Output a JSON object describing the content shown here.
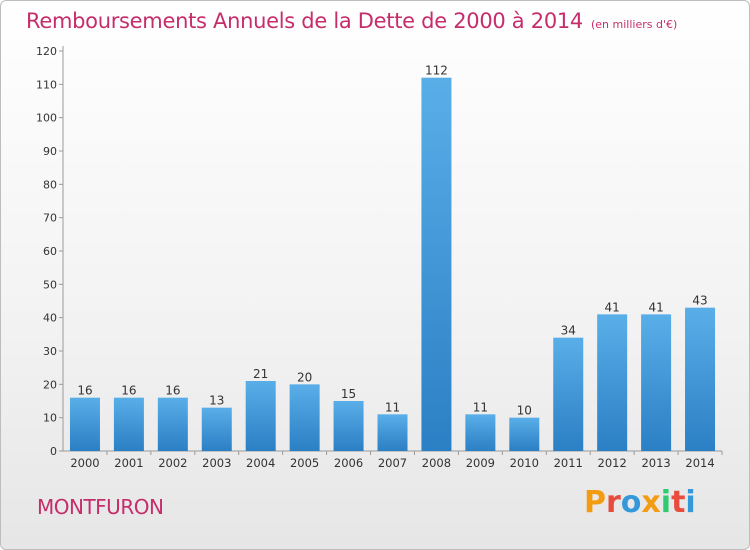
{
  "header": {
    "title": "Remboursements Annuels de la Dette de 2000 à 2014",
    "subtitle": "(en milliers d'€)"
  },
  "footer": {
    "town": "MONTFURON",
    "logo_text": "Proxiti"
  },
  "colors": {
    "title": "#c62d6b",
    "bar_light": "#5aaee8",
    "bar_dark": "#2b7fc4",
    "logo": [
      "#f39c12",
      "#e74c3c",
      "#3498db",
      "#f39c12",
      "#2ecc71",
      "#e74c3c",
      "#3498db"
    ]
  },
  "chart_data": {
    "type": "bar",
    "title": "Remboursements Annuels de la Dette de 2000 à 2014",
    "categories": [
      "2000",
      "2001",
      "2002",
      "2003",
      "2004",
      "2005",
      "2006",
      "2007",
      "2008",
      "2009",
      "2010",
      "2011",
      "2012",
      "2013",
      "2014"
    ],
    "values": [
      16,
      16,
      16,
      13,
      21,
      20,
      15,
      11,
      112,
      11,
      10,
      34,
      41,
      41,
      43
    ],
    "ylim": [
      0,
      120
    ],
    "yticks": [
      0,
      10,
      20,
      30,
      40,
      50,
      60,
      70,
      80,
      90,
      100,
      110,
      120
    ],
    "grid": false,
    "data_labels": true
  }
}
